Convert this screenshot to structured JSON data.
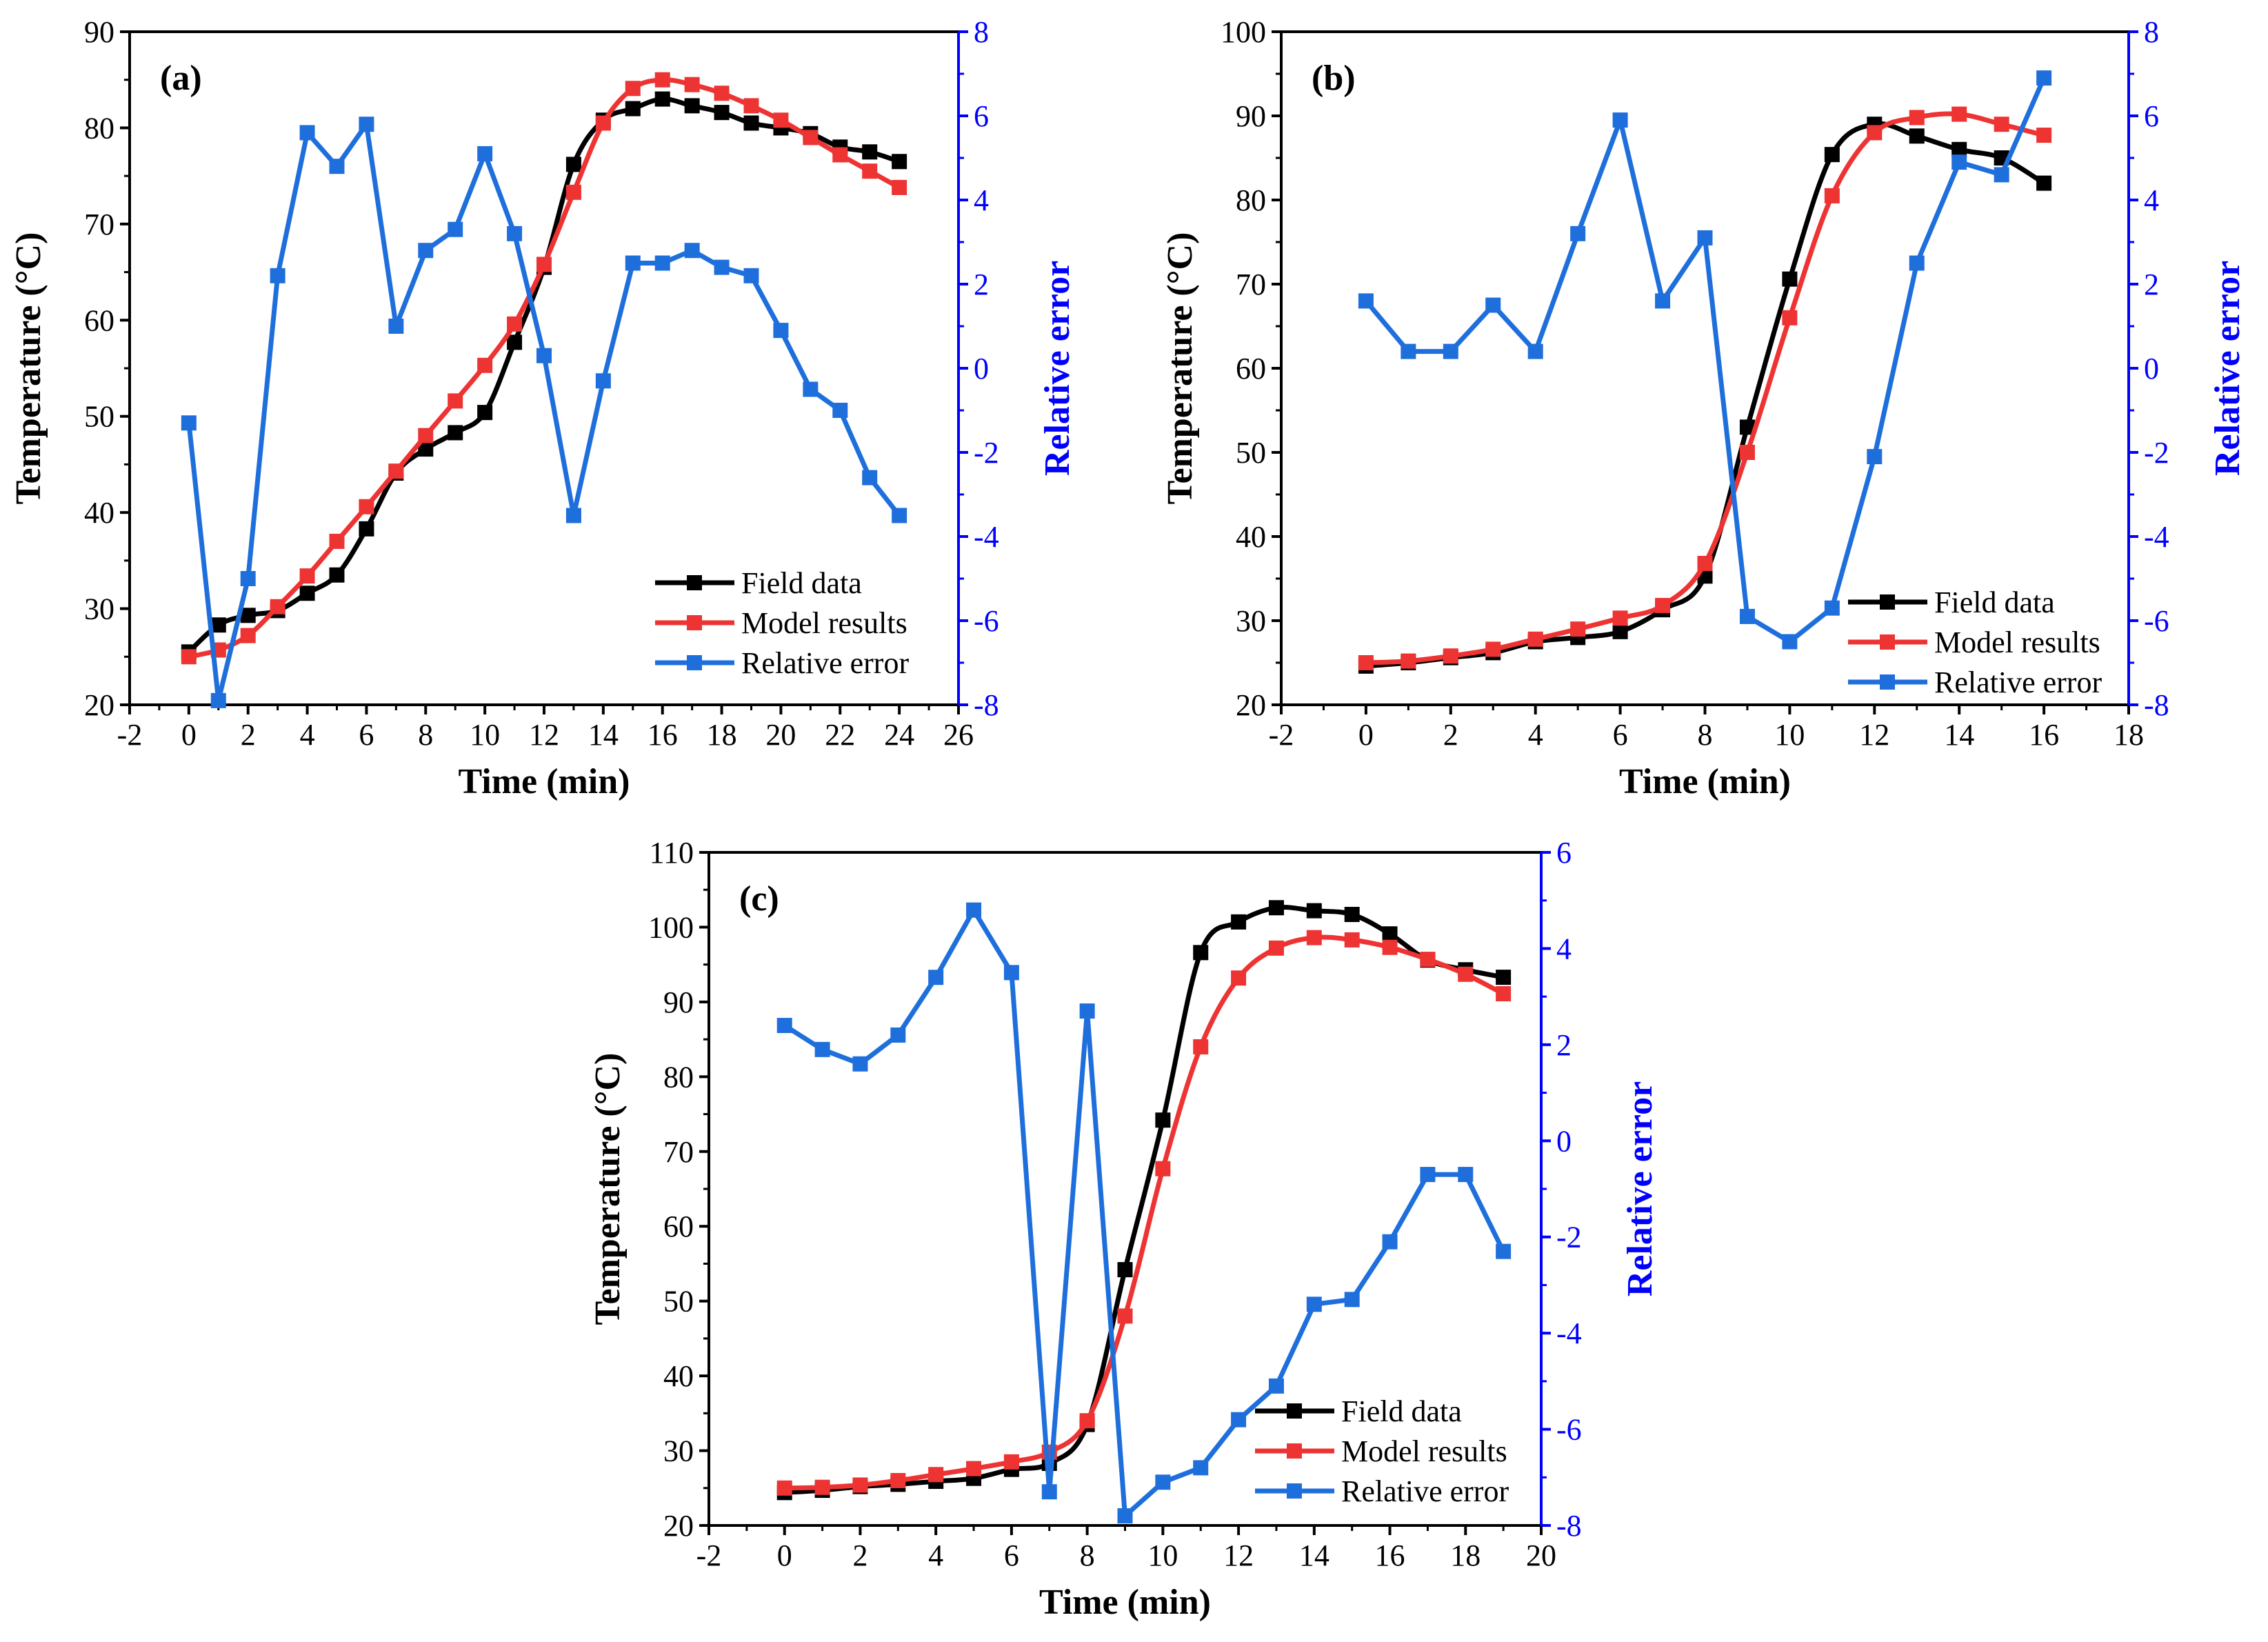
{
  "colors": {
    "field": "#000000",
    "model": "#ee3333",
    "error": "#1e6fdc",
    "right_axis": "#0000ff"
  },
  "chart_data": [
    {
      "type": "line",
      "panel": "(a)",
      "xlabel": "Time (min)",
      "ylabel": "Temperature (°C)",
      "y2label": "Relative error",
      "xlim": [
        -2,
        26
      ],
      "xticks": [
        -2,
        0,
        2,
        4,
        6,
        8,
        10,
        12,
        14,
        16,
        18,
        20,
        22,
        24,
        26
      ],
      "ylim": [
        20,
        90
      ],
      "yticks": [
        20,
        30,
        40,
        50,
        60,
        70,
        80,
        90
      ],
      "y2lim": [
        -8,
        8
      ],
      "y2ticks": [
        -8,
        -6,
        -4,
        -2,
        0,
        2,
        4,
        6,
        8
      ],
      "legend": [
        "Field data",
        "Model results",
        "Relative error"
      ],
      "legend_position": "bottom-right",
      "x": [
        0,
        1,
        2,
        3,
        4,
        5,
        6,
        7,
        8,
        9,
        10,
        11,
        12,
        13,
        14,
        15,
        16,
        17,
        18,
        19,
        20,
        21,
        22,
        23,
        24
      ],
      "series": [
        {
          "name": "Field data",
          "axis": "left",
          "values": [
            25.5,
            28.3,
            29.3,
            29.8,
            31.6,
            33.5,
            38.3,
            44.1,
            46.6,
            48.3,
            50.4,
            57.7,
            65.5,
            76.2,
            80.8,
            82.0,
            83.0,
            82.3,
            81.6,
            80.5,
            80.0,
            79.4,
            78.0,
            77.5,
            76.5
          ]
        },
        {
          "name": "Model results",
          "axis": "left",
          "values": [
            25.0,
            25.7,
            27.2,
            30.2,
            33.4,
            37.0,
            40.6,
            44.3,
            48.0,
            51.6,
            55.3,
            59.6,
            65.8,
            73.3,
            80.5,
            84.1,
            85.0,
            84.5,
            83.6,
            82.3,
            80.8,
            79.0,
            77.2,
            75.5,
            73.8
          ]
        },
        {
          "name": "Relative error",
          "axis": "right",
          "values": [
            -1.3,
            -7.9,
            -5.0,
            2.2,
            5.6,
            4.8,
            5.8,
            1.0,
            2.8,
            3.3,
            5.1,
            3.2,
            0.3,
            -3.5,
            -0.3,
            2.5,
            2.5,
            2.8,
            2.4,
            2.2,
            0.9,
            -0.5,
            -1.0,
            -2.6,
            -3.5
          ]
        }
      ]
    },
    {
      "type": "line",
      "panel": "(b)",
      "xlabel": "Time (min)",
      "ylabel": "Temperature (°C)",
      "y2label": "Relative error",
      "xlim": [
        -2,
        18
      ],
      "xticks": [
        -2,
        0,
        2,
        4,
        6,
        8,
        10,
        12,
        14,
        16,
        18
      ],
      "ylim": [
        20,
        100
      ],
      "yticks": [
        20,
        30,
        40,
        50,
        60,
        70,
        80,
        90,
        100
      ],
      "y2lim": [
        -8,
        8
      ],
      "y2ticks": [
        -8,
        -6,
        -4,
        -2,
        0,
        2,
        4,
        6,
        8
      ],
      "legend": [
        "Field data",
        "Model results",
        "Relative error"
      ],
      "legend_position": "bottom-right",
      "x": [
        0,
        1,
        2,
        3,
        4,
        5,
        6,
        7,
        8,
        9,
        10,
        11,
        12,
        13,
        14,
        15,
        16
      ],
      "series": [
        {
          "name": "Field data",
          "axis": "left",
          "values": [
            24.6,
            25.0,
            25.6,
            26.2,
            27.5,
            28.0,
            28.7,
            31.3,
            35.3,
            53.0,
            70.6,
            85.4,
            89.0,
            87.6,
            86.0,
            85.0,
            82.0
          ]
        },
        {
          "name": "Model results",
          "axis": "left",
          "values": [
            25.0,
            25.2,
            25.8,
            26.6,
            27.8,
            29.0,
            30.3,
            31.8,
            36.8,
            50.0,
            66.0,
            80.5,
            88.0,
            89.8,
            90.2,
            89.0,
            87.7
          ]
        },
        {
          "name": "Relative error",
          "axis": "right",
          "values": [
            1.6,
            0.4,
            0.4,
            1.5,
            0.4,
            3.2,
            5.9,
            1.6,
            3.1,
            -5.9,
            -6.5,
            -5.7,
            -2.1,
            2.5,
            4.9,
            4.6,
            6.9
          ]
        }
      ]
    },
    {
      "type": "line",
      "panel": "(c)",
      "xlabel": "Time (min)",
      "ylabel": "Temperature (°C)",
      "y2label": "Relative error",
      "xlim": [
        -2,
        20
      ],
      "xticks": [
        -2,
        0,
        2,
        4,
        6,
        8,
        10,
        12,
        14,
        16,
        18,
        20
      ],
      "ylim": [
        20,
        110
      ],
      "yticks": [
        20,
        30,
        40,
        50,
        60,
        70,
        80,
        90,
        100,
        110
      ],
      "y2lim": [
        -8,
        6
      ],
      "y2ticks": [
        -8,
        -6,
        -4,
        -2,
        0,
        2,
        4,
        6
      ],
      "legend": [
        "Field data",
        "Model results",
        "Relative error"
      ],
      "legend_position": "bottom-right",
      "x": [
        0,
        1,
        2,
        3,
        4,
        5,
        6,
        7,
        8,
        9,
        10,
        11,
        12,
        13,
        14,
        15,
        16,
        17,
        18,
        19
      ],
      "series": [
        {
          "name": "Field data",
          "axis": "left",
          "values": [
            24.4,
            24.7,
            25.2,
            25.5,
            25.9,
            26.3,
            27.5,
            28.3,
            33.5,
            54.2,
            74.2,
            96.6,
            100.7,
            102.6,
            102.2,
            101.7,
            99.1,
            95.6,
            94.3,
            93.3
          ]
        },
        {
          "name": "Model results",
          "axis": "left",
          "values": [
            25.0,
            25.1,
            25.4,
            26.0,
            26.8,
            27.6,
            28.5,
            29.8,
            34.0,
            48.0,
            67.7,
            84.0,
            93.2,
            97.2,
            98.6,
            98.3,
            97.3,
            95.7,
            93.7,
            91.1
          ]
        },
        {
          "name": "Relative error",
          "axis": "right",
          "values": [
            2.4,
            1.9,
            1.6,
            2.2,
            3.4,
            4.8,
            3.5,
            -7.3,
            2.7,
            -7.8,
            -7.1,
            -6.8,
            -5.8,
            -5.1,
            -3.4,
            -3.3,
            -2.1,
            -0.7,
            -0.7,
            -2.3
          ]
        }
      ]
    }
  ]
}
